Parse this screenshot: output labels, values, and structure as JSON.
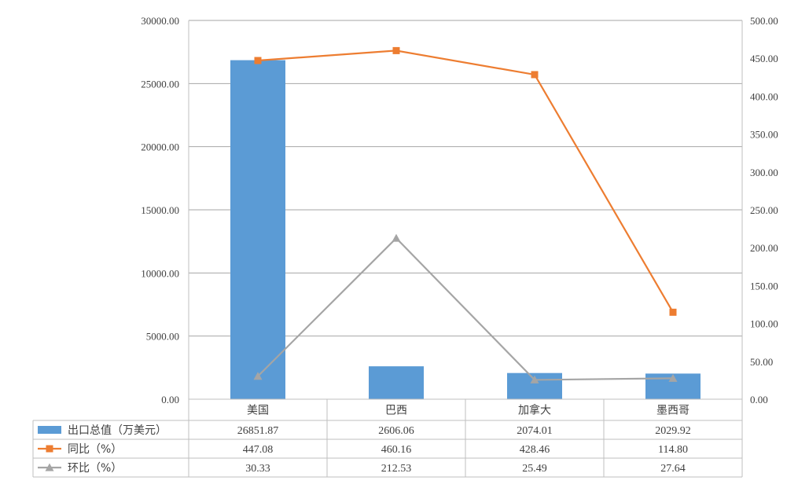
{
  "chart_data": {
    "type": "bar",
    "categories": [
      "美国",
      "巴西",
      "加拿大",
      "墨西哥"
    ],
    "series": [
      {
        "name": "出口总值（万美元）",
        "type": "bar",
        "axis": "left",
        "color": "#5B9BD5",
        "values": [
          26851.87,
          2606.06,
          2074.01,
          2029.92
        ],
        "labels": [
          "26851.87",
          "2606.06",
          "2074.01",
          "2029.92"
        ]
      },
      {
        "name": "同比（%）",
        "type": "line",
        "axis": "right",
        "color": "#ED7D31",
        "marker": "square",
        "values": [
          447.08,
          460.16,
          428.46,
          114.8
        ],
        "labels": [
          "447.08",
          "460.16",
          "428.46",
          "114.80"
        ]
      },
      {
        "name": "环比（%）",
        "type": "line",
        "axis": "right",
        "color": "#A5A5A5",
        "marker": "triangle",
        "values": [
          30.33,
          212.53,
          25.49,
          27.64
        ],
        "labels": [
          "30.33",
          "212.53",
          "25.49",
          "27.64"
        ]
      }
    ],
    "y_left": {
      "min": 0,
      "max": 30000,
      "step": 5000,
      "tick_labels": [
        "0.00",
        "5000.00",
        "10000.00",
        "15000.00",
        "20000.00",
        "25000.00",
        "30000.00"
      ]
    },
    "y_right": {
      "min": 0,
      "max": 500,
      "step": 50,
      "tick_labels": [
        "0.00",
        "50.00",
        "100.00",
        "150.00",
        "200.00",
        "250.00",
        "300.00",
        "350.00",
        "400.00",
        "450.00",
        "500.00"
      ]
    },
    "grid": true,
    "data_table": true
  }
}
